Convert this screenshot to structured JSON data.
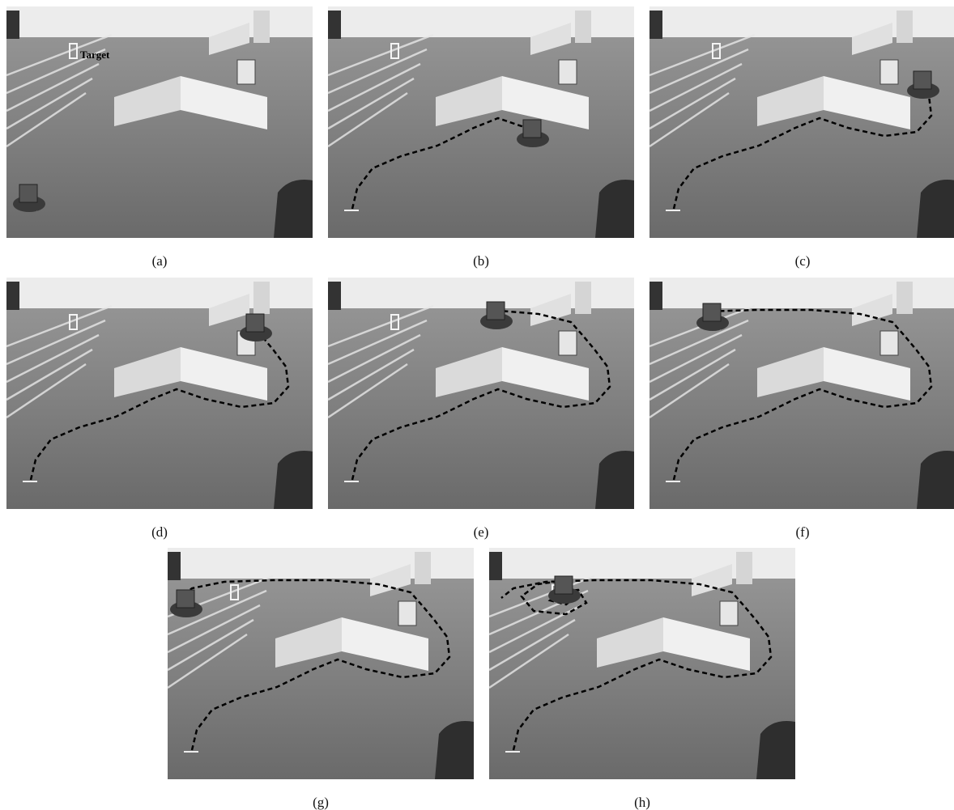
{
  "panels": [
    {
      "label": "(a)",
      "annotation": "Target"
    },
    {
      "label": "(b)"
    },
    {
      "label": "(c)"
    },
    {
      "label": "(d)"
    },
    {
      "label": "(e)"
    },
    {
      "label": "(f)"
    },
    {
      "label": "(g)"
    },
    {
      "label": "(h)"
    }
  ]
}
